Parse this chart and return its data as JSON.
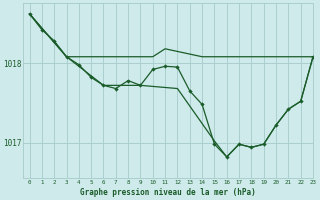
{
  "title": "Graphe pression niveau de la mer (hPa)",
  "background_color": "#ceeaea",
  "grid_color": "#aacfcf",
  "line_color": "#1a5c2a",
  "text_color": "#1a5c2a",
  "xlim": [
    -0.5,
    23
  ],
  "ylim": [
    1016.55,
    1018.75
  ],
  "yticks": [
    1017,
    1018
  ],
  "ytick_labels": [
    "1017",
    "1018"
  ],
  "xticks": [
    0,
    1,
    2,
    3,
    4,
    5,
    6,
    7,
    8,
    9,
    10,
    11,
    12,
    13,
    14,
    15,
    16,
    17,
    18,
    19,
    20,
    21,
    22,
    23
  ],
  "line_zigzag_x": [
    0,
    1,
    2,
    3,
    4,
    5,
    6,
    7,
    8,
    9,
    10,
    11,
    12,
    13,
    14,
    15,
    16,
    17,
    18,
    19,
    20,
    21,
    22,
    23
  ],
  "line_zigzag_y": [
    1018.62,
    1018.42,
    1018.28,
    1018.08,
    1017.98,
    1017.82,
    1017.72,
    1017.68,
    1017.78,
    1017.72,
    1017.92,
    1017.96,
    1017.95,
    1017.65,
    1017.48,
    1016.98,
    1016.82,
    1016.98,
    1016.94,
    1016.98,
    1017.22,
    1017.42,
    1017.52,
    1018.08
  ],
  "line_flat_x": [
    0,
    3,
    10,
    11,
    14,
    19,
    22,
    23
  ],
  "line_flat_y": [
    1018.62,
    1018.08,
    1018.08,
    1018.18,
    1018.08,
    1018.08,
    1018.08,
    1018.08
  ],
  "line_diag_x": [
    0,
    3,
    6,
    9,
    12,
    15,
    16,
    17,
    18,
    19,
    20,
    21,
    22,
    23
  ],
  "line_diag_y": [
    1018.62,
    1018.08,
    1017.72,
    1017.72,
    1017.68,
    1017.02,
    1016.82,
    1016.98,
    1016.94,
    1016.98,
    1017.22,
    1017.42,
    1017.52,
    1018.08
  ]
}
